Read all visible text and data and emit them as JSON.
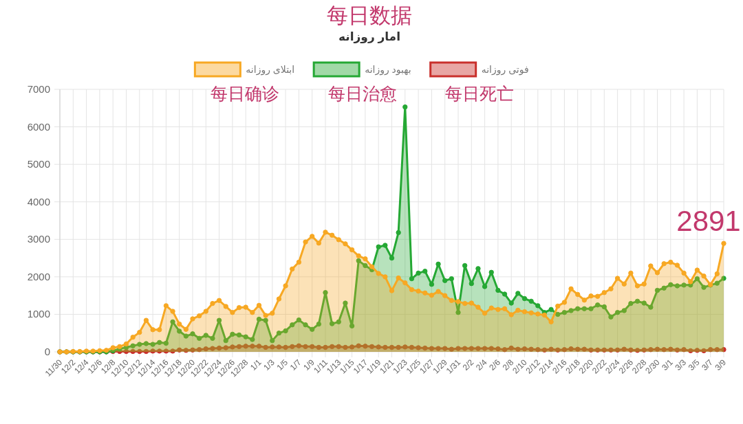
{
  "chart_data": {
    "type": "area",
    "title": "每日数据",
    "subtitle": "امار روزانه",
    "categories": [
      "11/30",
      null,
      "12/2",
      null,
      "12/4",
      null,
      "12/6",
      null,
      "12/8",
      null,
      "12/10",
      null,
      "12/12",
      null,
      "12/14",
      null,
      "12/16",
      null,
      "12/18",
      null,
      "12/20",
      null,
      "12/22",
      null,
      "12/24",
      null,
      "12/26",
      null,
      "12/28",
      null,
      "1/1",
      null,
      "1/3",
      null,
      "1/5",
      null,
      "1/7",
      null,
      "1/9",
      null,
      "1/11",
      null,
      "1/13",
      null,
      "1/15",
      null,
      "1/17",
      null,
      "1/19",
      null,
      "1/21",
      null,
      "1/23",
      null,
      "1/25",
      null,
      "1/27",
      null,
      "1/29",
      null,
      "1/31",
      null,
      "2/2",
      null,
      "2/4",
      null,
      "2/6",
      null,
      "2/8",
      null,
      "2/10",
      null,
      "2/12",
      null,
      "2/14",
      null,
      "2/16",
      null,
      "2/18",
      null,
      "2/20",
      null,
      "2/22",
      null,
      "2/24",
      null,
      "2/26",
      null,
      "2/28",
      null,
      "2/30",
      null,
      "3/1",
      null,
      "3/3",
      null,
      "3/5",
      null,
      "3/7",
      null,
      "3/9"
    ],
    "series": [
      {
        "name": "ابتلای روزانه",
        "color": "#f7a823",
        "values": [
          0,
          0,
          10,
          10,
          20,
          20,
          30,
          40,
          110,
          140,
          210,
          390,
          520,
          840,
          590,
          590,
          1230,
          1080,
          740,
          600,
          880,
          960,
          1080,
          1290,
          1370,
          1210,
          1050,
          1180,
          1190,
          1050,
          1240,
          970,
          1030,
          1410,
          1760,
          2210,
          2390,
          2930,
          3080,
          2900,
          3190,
          3110,
          2990,
          2880,
          2720,
          2560,
          2480,
          2270,
          2090,
          2000,
          1630,
          1970,
          1840,
          1660,
          1620,
          1570,
          1510,
          1610,
          1500,
          1370,
          1340,
          1290,
          1300,
          1190,
          1030,
          1170,
          1130,
          1150,
          990,
          1110,
          1070,
          1040,
          1010,
          980,
          800,
          1220,
          1320,
          1680,
          1530,
          1380,
          1490,
          1480,
          1580,
          1680,
          1960,
          1810,
          2100,
          1760,
          1810,
          2290,
          2110,
          2350,
          2390,
          2310,
          2100,
          1870,
          2180,
          2020,
          1790,
          2080,
          2891
        ]
      },
      {
        "name": "بهبود روزانه",
        "color": "#25a834",
        "values": [
          0,
          0,
          0,
          0,
          0,
          0,
          0,
          0,
          30,
          80,
          120,
          160,
          200,
          220,
          200,
          250,
          230,
          800,
          550,
          420,
          480,
          360,
          440,
          360,
          840,
          300,
          470,
          450,
          400,
          330,
          870,
          840,
          300,
          500,
          560,
          720,
          850,
          720,
          600,
          740,
          1580,
          750,
          800,
          1300,
          690,
          2430,
          2300,
          2190,
          2800,
          2840,
          2500,
          3180,
          6530,
          1950,
          2100,
          2150,
          1800,
          2340,
          1900,
          1950,
          1050,
          2300,
          1820,
          2220,
          1740,
          2120,
          1640,
          1540,
          1300,
          1560,
          1420,
          1350,
          1230,
          1050,
          1130,
          1000,
          1050,
          1100,
          1150,
          1150,
          1150,
          1250,
          1200,
          930,
          1050,
          1100,
          1290,
          1350,
          1300,
          1190,
          1640,
          1700,
          1790,
          1760,
          1780,
          1780,
          1950,
          1720,
          1780,
          1830,
          1960
        ]
      },
      {
        "name": "فوتی روزانه",
        "color": "#c9302c",
        "values": [
          0,
          0,
          0,
          0,
          0,
          0,
          0,
          0,
          10,
          10,
          10,
          10,
          10,
          10,
          20,
          20,
          20,
          20,
          50,
          40,
          50,
          60,
          80,
          90,
          100,
          110,
          130,
          140,
          150,
          150,
          150,
          120,
          130,
          130,
          120,
          140,
          160,
          140,
          140,
          120,
          120,
          140,
          140,
          120,
          130,
          160,
          150,
          140,
          130,
          120,
          120,
          120,
          130,
          120,
          110,
          100,
          90,
          90,
          90,
          70,
          90,
          90,
          90,
          90,
          90,
          90,
          80,
          60,
          100,
          70,
          80,
          70,
          60,
          50,
          70,
          50,
          60,
          80,
          70,
          70,
          50,
          50,
          50,
          50,
          50,
          70,
          50,
          40,
          50,
          60,
          70,
          60,
          70,
          50,
          60,
          30,
          40,
          30,
          60,
          60,
          60
        ]
      }
    ],
    "ylim": [
      0,
      7000
    ],
    "yticks": [
      0,
      1000,
      2000,
      3000,
      4000,
      5000,
      6000,
      7000
    ],
    "grid": true,
    "legend": "top",
    "marker": "circle",
    "annotations": [
      "每日确诊",
      "每日治愈",
      "每日死亡",
      {
        "text": "2891",
        "x": "3/9",
        "y": 2891
      }
    ]
  }
}
